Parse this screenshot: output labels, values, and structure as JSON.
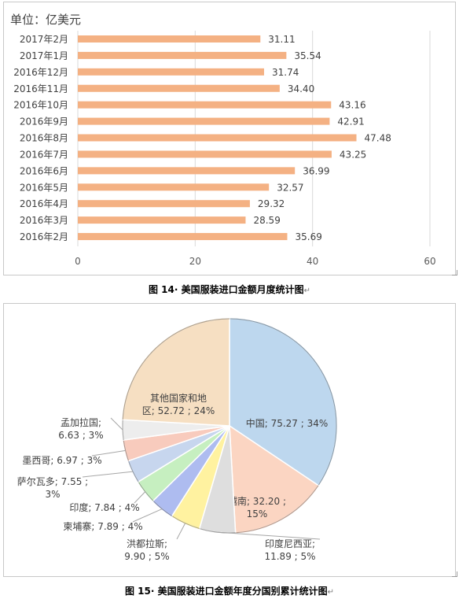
{
  "chart_data": [
    {
      "type": "bar",
      "orientation": "horizontal",
      "unit_label": "单位：亿美元",
      "categories": [
        "2017年2月",
        "2017年1月",
        "2016年12月",
        "2016年11月",
        "2016年10月",
        "2016年9月",
        "2016年8月",
        "2016年7月",
        "2016年6月",
        "2016年5月",
        "2016年4月",
        "2016年3月",
        "2016年2月"
      ],
      "values": [
        31.11,
        35.54,
        31.74,
        34.4,
        43.16,
        42.91,
        47.48,
        43.25,
        36.99,
        32.57,
        29.32,
        28.59,
        35.69
      ],
      "value_labels": [
        "31.11",
        "35.54",
        "31.74",
        "34.40",
        "43.16",
        "42.91",
        "47.48",
        "43.25",
        "36.99",
        "32.57",
        "29.32",
        "28.59",
        "35.69"
      ],
      "xlim": [
        0,
        60
      ],
      "xticks": [
        "0",
        "20",
        "40",
        "60"
      ],
      "grid": true,
      "color": "#f4b183"
    },
    {
      "type": "pie",
      "slices": [
        {
          "label_lines": [
            "中国; 75.27 ; 34%"
          ],
          "value": 75.27,
          "color": "#bdd7ee"
        },
        {
          "label_lines": [
            "越南; 32.20 ;",
            "15%"
          ],
          "value": 32.2,
          "color": "#fbd5c2"
        },
        {
          "label_lines": [
            "印度尼西亚;",
            "11.89 ; 5%"
          ],
          "value": 11.89,
          "color": "#dedede"
        },
        {
          "label_lines": [
            "洪都拉斯;",
            "9.90 ; 5%"
          ],
          "value": 9.9,
          "color": "#fff2a0"
        },
        {
          "label_lines": [
            "柬埔寨; 7.89 ; 4%"
          ],
          "value": 7.89,
          "color": "#aebcf0"
        },
        {
          "label_lines": [
            "印度; 7.84 ; 4%"
          ],
          "value": 7.84,
          "color": "#c6efc0"
        },
        {
          "label_lines": [
            "萨尔瓦多; 7.55 ;",
            "3%"
          ],
          "value": 7.55,
          "color": "#c7d6ee"
        },
        {
          "label_lines": [
            "墨西哥; 6.97 ; 3%"
          ],
          "value": 6.97,
          "color": "#f8cbbd"
        },
        {
          "label_lines": [
            "孟加拉国;",
            "6.63 ; 3%"
          ],
          "value": 6.63,
          "color": "#ededed"
        },
        {
          "label_lines": [
            "其他国家和地",
            "区; 52.72 ; 24%"
          ],
          "value": 52.72,
          "color": "#f6dfc2"
        }
      ]
    }
  ],
  "captions": {
    "bar": "图 14",
    "bar_title": "美国服装进口金额月度统计图",
    "pie": "图 15",
    "pie_title": "美国服装进口金额年度分国别累计统计图",
    "mark": "↵"
  }
}
